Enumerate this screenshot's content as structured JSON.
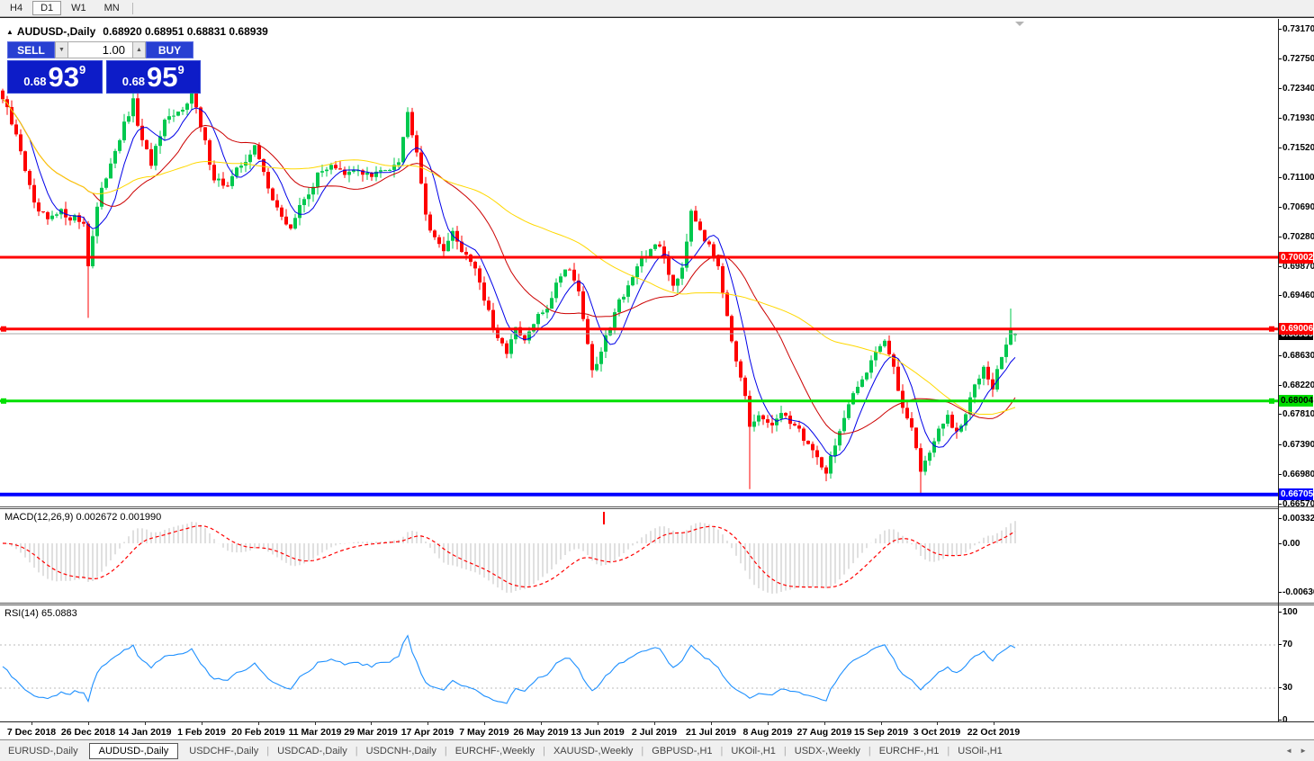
{
  "toolbar": {
    "timeframes": [
      {
        "label": "H4",
        "active": false
      },
      {
        "label": "D1",
        "active": true
      },
      {
        "label": "W1",
        "active": false
      },
      {
        "label": "MN",
        "active": false
      }
    ]
  },
  "title": {
    "marker": "▲",
    "text": "AUDUSD-,Daily",
    "ohlc": "0.68920 0.68951 0.68831 0.68939"
  },
  "trade_panel": {
    "sell_label": "SELL",
    "buy_label": "BUY",
    "volume": "1.00",
    "spinner_down": "▼",
    "spinner_up": "▲",
    "sell_price": {
      "prefix": "0.68",
      "big": "93",
      "sup": "9"
    },
    "buy_price": {
      "prefix": "0.68",
      "big": "95",
      "sup": "9"
    }
  },
  "price_axis": {
    "ticks": [
      "0.73170",
      "0.72750",
      "0.72340",
      "0.71930",
      "0.71520",
      "0.71100",
      "0.70690",
      "0.70280",
      "0.69870",
      "0.69460",
      "0.68630",
      "0.68220",
      "0.67810",
      "0.67390",
      "0.66980",
      "0.66570"
    ],
    "level_labels": [
      {
        "text": "0.68939",
        "bg": "#000000",
        "fg": "#ffffff",
        "price": 0.68939,
        "z": 1
      },
      {
        "text": "0.70002",
        "bg": "#ff0000",
        "fg": "#ffffff",
        "price": 0.70002,
        "z": 2
      },
      {
        "text": "0.69006",
        "bg": "#ff0000",
        "fg": "#ffffff",
        "price": 0.69006,
        "z": 2
      },
      {
        "text": "0.68004",
        "bg": "#00dd00",
        "fg": "#000000",
        "price": 0.68004,
        "z": 2
      },
      {
        "text": "0.66705",
        "bg": "#0000ff",
        "fg": "#ffffff",
        "price": 0.66705,
        "z": 2
      }
    ]
  },
  "macd_panel": {
    "label": "MACD(12,26,9) 0.002672 0.001990",
    "axis": [
      {
        "text": "0.00332",
        "y": 11
      },
      {
        "text": "0.00",
        "y": 39
      },
      {
        "text": "-0.00636",
        "y": 93
      }
    ]
  },
  "rsi_panel": {
    "label": "RSI(14) 65.0883",
    "axis": [
      {
        "text": "100",
        "v": 100
      },
      {
        "text": "70",
        "v": 70
      },
      {
        "text": "30",
        "v": 30
      },
      {
        "text": "0",
        "v": 0
      }
    ]
  },
  "tabs": {
    "items": [
      {
        "label": "EURUSD-,Daily",
        "active": false
      },
      {
        "label": "AUDUSD-,Daily",
        "active": true
      },
      {
        "label": "USDCHF-,Daily",
        "active": false
      },
      {
        "label": "USDCAD-,Daily",
        "active": false
      },
      {
        "label": "USDCNH-,Daily",
        "active": false
      },
      {
        "label": "EURCHF-,Weekly",
        "active": false
      },
      {
        "label": "XAUUSD-,Weekly",
        "active": false
      },
      {
        "label": "GBPUSD-,H1",
        "active": false
      },
      {
        "label": "UKOil-,H1",
        "active": false
      },
      {
        "label": "USDX-,Weekly",
        "active": false
      },
      {
        "label": "EURCHF-,H1",
        "active": false
      },
      {
        "label": "USOil-,H1",
        "active": false
      }
    ],
    "scroll_left": "◄",
    "scroll_right": "►"
  },
  "colors": {
    "bull": "#00c84e",
    "bear": "#fe0000",
    "ma_fast": "#0000e8",
    "ma_mid": "#cc0000",
    "ma_slow": "#ffd800",
    "macd_hist": "#c0c0c0",
    "macd_signal": "#ff0000",
    "rsi_line": "#1e90ff",
    "rsi_levels": "#bbbbbb",
    "current_price_line": "#aaaaaa"
  },
  "chart_data": {
    "type": "candlestick",
    "symbol": "AUDUSD",
    "timeframe": "Daily",
    "title": "AUDUSD-,Daily",
    "ohlc_header": {
      "open": 0.6892,
      "high": 0.68951,
      "low": 0.68831,
      "close": 0.68939
    },
    "bid": 0.68939,
    "ask": 0.68959,
    "ylim": [
      0.6657,
      0.7317
    ],
    "y_tick_step": 0.0041,
    "grid": false,
    "candle_count": 226,
    "anchor_points": [
      [
        0,
        0.722
      ],
      [
        4,
        0.715
      ],
      [
        7,
        0.707
      ],
      [
        10,
        0.705
      ],
      [
        13,
        0.7062
      ],
      [
        16,
        0.7055
      ],
      [
        18,
        0.7048
      ],
      [
        19,
        0.6992
      ],
      [
        21,
        0.7068
      ],
      [
        24,
        0.7135
      ],
      [
        28,
        0.7198
      ],
      [
        29,
        0.7215
      ],
      [
        31,
        0.7158
      ],
      [
        33,
        0.7132
      ],
      [
        36,
        0.7185
      ],
      [
        39,
        0.72
      ],
      [
        42,
        0.723
      ],
      [
        44,
        0.718
      ],
      [
        47,
        0.7112
      ],
      [
        50,
        0.7098
      ],
      [
        53,
        0.713
      ],
      [
        56,
        0.7152
      ],
      [
        59,
        0.71
      ],
      [
        62,
        0.7052
      ],
      [
        64,
        0.7042
      ],
      [
        67,
        0.7082
      ],
      [
        70,
        0.7112
      ],
      [
        73,
        0.7132
      ],
      [
        76,
        0.7112
      ],
      [
        79,
        0.7122
      ],
      [
        82,
        0.7112
      ],
      [
        85,
        0.7122
      ],
      [
        88,
        0.7138
      ],
      [
        90,
        0.72
      ],
      [
        92,
        0.7152
      ],
      [
        94,
        0.7062
      ],
      [
        96,
        0.7022
      ],
      [
        98,
        0.7015
      ],
      [
        100,
        0.7032
      ],
      [
        102,
        0.7012
      ],
      [
        105,
        0.6988
      ],
      [
        107,
        0.6942
      ],
      [
        110,
        0.6882
      ],
      [
        112,
        0.6872
      ],
      [
        114,
        0.6898
      ],
      [
        116,
        0.6882
      ],
      [
        118,
        0.6908
      ],
      [
        121,
        0.6932
      ],
      [
        124,
        0.6978
      ],
      [
        126,
        0.6988
      ],
      [
        128,
        0.6952
      ],
      [
        130,
        0.6882
      ],
      [
        131,
        0.6838
      ],
      [
        133,
        0.6868
      ],
      [
        136,
        0.6928
      ],
      [
        139,
        0.6962
      ],
      [
        142,
        0.6992
      ],
      [
        145,
        0.7022
      ],
      [
        147,
        0.6998
      ],
      [
        149,
        0.6962
      ],
      [
        151,
        0.6988
      ],
      [
        153,
        0.7068
      ],
      [
        155,
        0.7042
      ],
      [
        157,
        0.7012
      ],
      [
        159,
        0.6992
      ],
      [
        161,
        0.6922
      ],
      [
        163,
        0.6852
      ],
      [
        165,
        0.6802
      ],
      [
        166,
        0.6762
      ],
      [
        168,
        0.6778
      ],
      [
        171,
        0.6768
      ],
      [
        174,
        0.6782
      ],
      [
        177,
        0.6758
      ],
      [
        180,
        0.6732
      ],
      [
        183,
        0.6702
      ],
      [
        185,
        0.6742
      ],
      [
        188,
        0.6792
      ],
      [
        191,
        0.6832
      ],
      [
        194,
        0.6872
      ],
      [
        196,
        0.6886
      ],
      [
        198,
        0.6842
      ],
      [
        200,
        0.6792
      ],
      [
        202,
        0.6768
      ],
      [
        204,
        0.6702
      ],
      [
        206,
        0.6732
      ],
      [
        208,
        0.6758
      ],
      [
        210,
        0.6778
      ],
      [
        212,
        0.6752
      ],
      [
        214,
        0.6782
      ],
      [
        216,
        0.6822
      ],
      [
        218,
        0.6852
      ],
      [
        220,
        0.6822
      ],
      [
        222,
        0.6862
      ],
      [
        224,
        0.6896
      ],
      [
        225,
        0.6894
      ]
    ],
    "wick_events": [
      {
        "i": 19,
        "low": 0.6916
      },
      {
        "i": 166,
        "low": 0.6678
      },
      {
        "i": 183,
        "low": 0.6689
      },
      {
        "i": 204,
        "low": 0.6671
      },
      {
        "i": 224,
        "high": 0.6929
      }
    ],
    "hlines": [
      {
        "price": 0.70002,
        "color": "#ff0000",
        "width": 3,
        "handles": false
      },
      {
        "price": 0.69006,
        "color": "#ff0000",
        "width": 3,
        "handles": true
      },
      {
        "price": 0.68004,
        "color": "#00e000",
        "width": 3,
        "handles": true
      },
      {
        "price": 0.66705,
        "color": "#0000ff",
        "width": 4,
        "handles": false
      }
    ],
    "current_price_line": 0.68939,
    "moving_averages": [
      {
        "period": 7,
        "color": "#0000e8"
      },
      {
        "period": 21,
        "color": "#cc0000"
      },
      {
        "period": 55,
        "color": "#ffd800"
      }
    ],
    "macd": {
      "fast": 12,
      "slow": 26,
      "signal_period": 9,
      "main_value": 0.002672,
      "signal_value": 0.00199,
      "axis_top": 0.00332,
      "axis_zero": 0.0,
      "axis_bottom": -0.00636,
      "marker_x": 671
    },
    "rsi": {
      "period": 14,
      "value": 65.0883,
      "upper_level": 70,
      "lower_level": 30
    },
    "x_axis_labels": [
      "7 Dec 2018",
      "26 Dec 2018",
      "14 Jan 2019",
      "1 Feb 2019",
      "20 Feb 2019",
      "11 Mar 2019",
      "29 Mar 2019",
      "17 Apr 2019",
      "7 May 2019",
      "26 May 2019",
      "13 Jun 2019",
      "2 Jul 2019",
      "21 Jul 2019",
      "8 Aug 2019",
      "27 Aug 2019",
      "15 Sep 2019",
      "3 Oct 2019",
      "22 Oct 2019"
    ]
  }
}
